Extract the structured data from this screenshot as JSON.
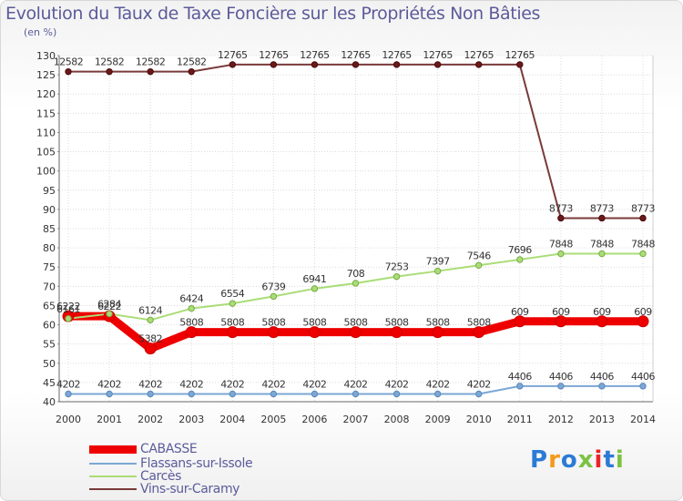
{
  "title": "Evolution du Taux de Taxe Foncière sur les Propriétés Non Bâties",
  "subtitle": "(en %)",
  "brand": "Proxiti",
  "chart_data": {
    "type": "line",
    "title": "Evolution du Taux de Taxe Foncière sur les Propriétés Non Bâties",
    "ylabel": "(en %)",
    "xlabel": "",
    "ylim": [
      40,
      130
    ],
    "yticks": [
      40,
      45,
      50,
      55,
      60,
      65,
      70,
      75,
      80,
      85,
      90,
      95,
      100,
      105,
      110,
      115,
      120,
      125,
      130
    ],
    "categories": [
      "2000",
      "2001",
      "2002",
      "2003",
      "2004",
      "2005",
      "2006",
      "2007",
      "2008",
      "2009",
      "2010",
      "2011",
      "2012",
      "2013",
      "2014"
    ],
    "grid": true,
    "legend_position": "bottom-left",
    "series": [
      {
        "name": "CABASSE",
        "color": "#ee0000",
        "values": [
          62.22,
          62.22,
          53.82,
          58.08,
          58.08,
          58.08,
          58.08,
          58.08,
          58.08,
          58.08,
          58.08,
          60.9,
          60.9,
          60.9,
          60.9
        ],
        "labels": [
          "62.22",
          "62.22",
          "53.82",
          "58.08",
          "58.08",
          "58.08",
          "58.08",
          "58.08",
          "58.08",
          "58.08",
          "58.08",
          "60.9",
          "60.9",
          "60.9",
          "60.9"
        ]
      },
      {
        "name": "Flassans-sur-Issole",
        "color": "#7ba7d4",
        "values": [
          42.02,
          42.02,
          42.02,
          42.02,
          42.02,
          42.02,
          42.02,
          42.02,
          42.02,
          42.02,
          42.02,
          44.06,
          44.06,
          44.06,
          44.06
        ],
        "labels": [
          "42.02",
          "42.02",
          "42.02",
          "42.02",
          "42.02",
          "42.02",
          "42.02",
          "42.02",
          "42.02",
          "42.02",
          "42.02",
          "44.06",
          "44.06",
          "44.06",
          "44.06"
        ]
      },
      {
        "name": "Carcès",
        "color": "#aadd77",
        "values": [
          61.61,
          62.84,
          61.24,
          64.24,
          65.54,
          67.39,
          69.41,
          70.8,
          72.53,
          73.97,
          75.46,
          76.96,
          78.48,
          78.48,
          78.48
        ],
        "labels": [
          "61.61",
          "62.84",
          "61.24",
          "64.24",
          "65.54",
          "67.39",
          "69.41",
          "70.8",
          "72.53",
          "73.97",
          "75.46",
          "76.96",
          "78.48",
          "78.48",
          "78.48"
        ]
      },
      {
        "name": "Vins-sur-Caramy",
        "color": "#7a3a3a",
        "values": [
          125.82,
          125.82,
          125.82,
          125.82,
          127.65,
          127.65,
          127.65,
          127.65,
          127.65,
          127.65,
          127.65,
          127.65,
          87.73,
          87.73,
          87.73
        ],
        "labels": [
          "125.82",
          "125.82",
          "125.82",
          "125.82",
          "127.65",
          "127.65",
          "127.65",
          "127.65",
          "127.65",
          "127.65",
          "127.65",
          "127.65",
          "87.73",
          "87.73",
          "87.73"
        ]
      }
    ]
  }
}
